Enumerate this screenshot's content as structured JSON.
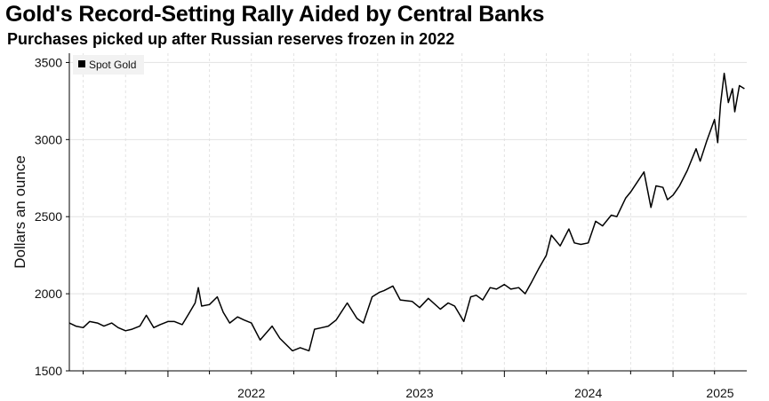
{
  "chart_data": {
    "type": "line",
    "title": "Gold's Record-Setting Rally Aided by Central Banks",
    "subtitle": "Purchases picked up after Russian reserves frozen in 2022",
    "ylabel": "Dollars an ounce",
    "xlabel": "",
    "ylim": [
      1500,
      3560
    ],
    "xlim": [
      "2021-06-01",
      "2025-06-10"
    ],
    "yticks": [
      1500,
      2000,
      2500,
      3000,
      3500
    ],
    "xticks": [
      {
        "label": "2022",
        "date": "2022-01-01"
      },
      {
        "label": "2023",
        "date": "2023-01-01"
      },
      {
        "label": "2024",
        "date": "2024-01-01"
      },
      {
        "label": "2025",
        "date": "2025-01-01"
      }
    ],
    "grid": true,
    "legend_position": "top-left",
    "series": [
      {
        "name": "Spot Gold",
        "color": "#000000",
        "points": [
          [
            "2021-06-01",
            1810
          ],
          [
            "2021-06-15",
            1790
          ],
          [
            "2021-07-01",
            1780
          ],
          [
            "2021-07-15",
            1820
          ],
          [
            "2021-08-01",
            1810
          ],
          [
            "2021-08-15",
            1790
          ],
          [
            "2021-09-01",
            1810
          ],
          [
            "2021-09-15",
            1780
          ],
          [
            "2021-10-01",
            1760
          ],
          [
            "2021-10-15",
            1770
          ],
          [
            "2021-11-01",
            1790
          ],
          [
            "2021-11-15",
            1860
          ],
          [
            "2021-12-01",
            1780
          ],
          [
            "2021-12-15",
            1800
          ],
          [
            "2022-01-01",
            1820
          ],
          [
            "2022-01-15",
            1820
          ],
          [
            "2022-02-01",
            1800
          ],
          [
            "2022-02-15",
            1870
          ],
          [
            "2022-03-01",
            1940
          ],
          [
            "2022-03-08",
            2040
          ],
          [
            "2022-03-15",
            1920
          ],
          [
            "2022-04-01",
            1930
          ],
          [
            "2022-04-18",
            1980
          ],
          [
            "2022-05-01",
            1880
          ],
          [
            "2022-05-15",
            1810
          ],
          [
            "2022-06-01",
            1850
          ],
          [
            "2022-06-15",
            1830
          ],
          [
            "2022-07-01",
            1810
          ],
          [
            "2022-07-20",
            1700
          ],
          [
            "2022-08-15",
            1790
          ],
          [
            "2022-09-01",
            1710
          ],
          [
            "2022-09-28",
            1630
          ],
          [
            "2022-10-15",
            1650
          ],
          [
            "2022-11-03",
            1630
          ],
          [
            "2022-11-15",
            1770
          ],
          [
            "2022-12-01",
            1780
          ],
          [
            "2022-12-15",
            1790
          ],
          [
            "2023-01-01",
            1830
          ],
          [
            "2023-01-25",
            1940
          ],
          [
            "2023-02-15",
            1840
          ],
          [
            "2023-03-01",
            1810
          ],
          [
            "2023-03-20",
            1980
          ],
          [
            "2023-04-05",
            2010
          ],
          [
            "2023-04-15",
            2020
          ],
          [
            "2023-05-04",
            2050
          ],
          [
            "2023-05-20",
            1960
          ],
          [
            "2023-06-15",
            1950
          ],
          [
            "2023-07-01",
            1910
          ],
          [
            "2023-07-20",
            1970
          ],
          [
            "2023-08-15",
            1900
          ],
          [
            "2023-09-01",
            1940
          ],
          [
            "2023-09-15",
            1920
          ],
          [
            "2023-10-05",
            1820
          ],
          [
            "2023-10-20",
            1980
          ],
          [
            "2023-11-01",
            1990
          ],
          [
            "2023-11-15",
            1960
          ],
          [
            "2023-12-01",
            2040
          ],
          [
            "2023-12-15",
            2030
          ],
          [
            "2024-01-01",
            2060
          ],
          [
            "2024-01-15",
            2030
          ],
          [
            "2024-02-01",
            2040
          ],
          [
            "2024-02-15",
            2000
          ],
          [
            "2024-03-01",
            2080
          ],
          [
            "2024-03-15",
            2160
          ],
          [
            "2024-04-01",
            2250
          ],
          [
            "2024-04-12",
            2380
          ],
          [
            "2024-05-01",
            2310
          ],
          [
            "2024-05-20",
            2420
          ],
          [
            "2024-06-01",
            2330
          ],
          [
            "2024-06-15",
            2320
          ],
          [
            "2024-07-01",
            2330
          ],
          [
            "2024-07-17",
            2470
          ],
          [
            "2024-08-01",
            2440
          ],
          [
            "2024-08-20",
            2510
          ],
          [
            "2024-09-01",
            2500
          ],
          [
            "2024-09-20",
            2620
          ],
          [
            "2024-10-01",
            2660
          ],
          [
            "2024-10-30",
            2790
          ],
          [
            "2024-11-14",
            2560
          ],
          [
            "2024-11-25",
            2700
          ],
          [
            "2024-12-10",
            2690
          ],
          [
            "2024-12-20",
            2610
          ],
          [
            "2025-01-01",
            2640
          ],
          [
            "2025-01-15",
            2700
          ],
          [
            "2025-02-01",
            2800
          ],
          [
            "2025-02-20",
            2940
          ],
          [
            "2025-03-01",
            2860
          ],
          [
            "2025-03-15",
            2990
          ],
          [
            "2025-04-01",
            3130
          ],
          [
            "2025-04-08",
            2980
          ],
          [
            "2025-04-14",
            3230
          ],
          [
            "2025-04-22",
            3430
          ],
          [
            "2025-05-01",
            3240
          ],
          [
            "2025-05-10",
            3330
          ],
          [
            "2025-05-15",
            3180
          ],
          [
            "2025-05-25",
            3350
          ],
          [
            "2025-06-05",
            3330
          ]
        ]
      }
    ]
  }
}
